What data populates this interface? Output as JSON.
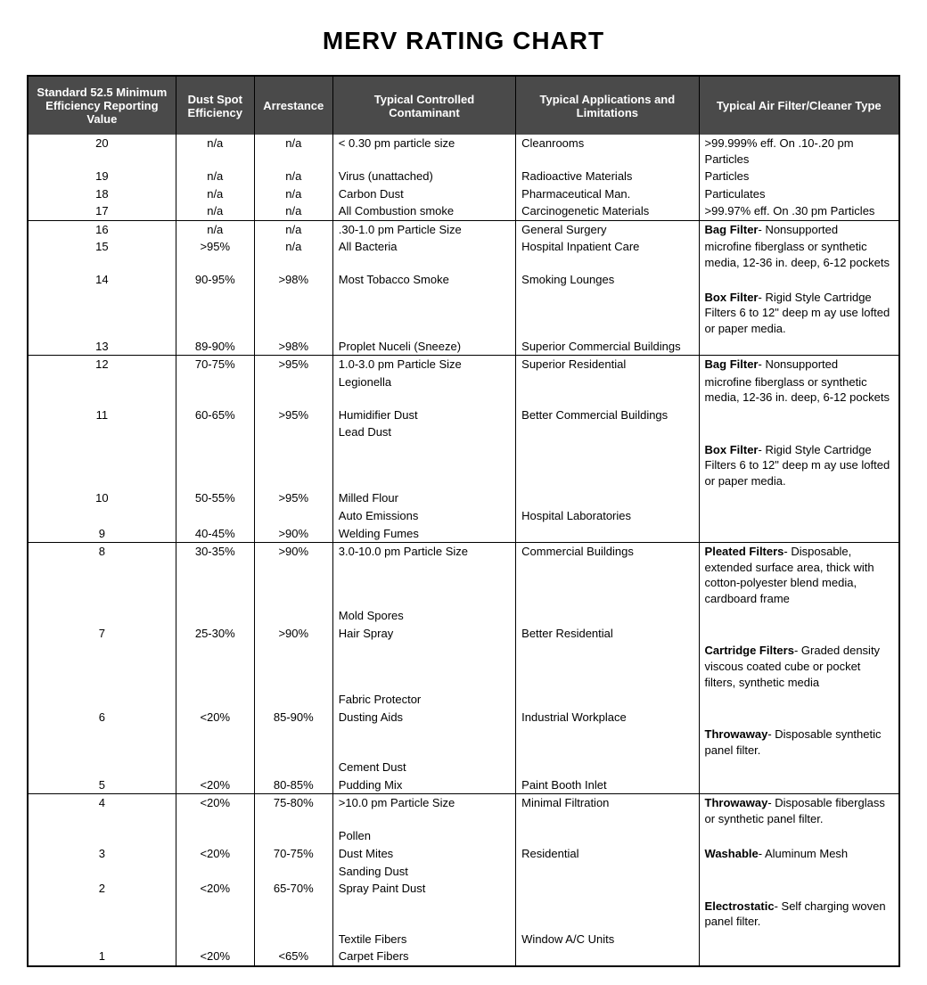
{
  "title": "MERV RATING CHART",
  "columns": [
    "Standard 52.5 Minimum Efficiency Reporting Value",
    "Dust Spot Efficiency",
    "Arrestance",
    "Typical Controlled Contaminant",
    "Typical Applications and Limitations",
    "Typical Air Filter/Cleaner Type"
  ],
  "styling": {
    "header_bg": "#4a4a4a",
    "header_color": "#ffffff",
    "border_color": "#000000",
    "body_bg": "#ffffff",
    "body_color": "#000000",
    "title_fontsize": 28,
    "header_fontsize": 13,
    "cell_fontsize": 13,
    "col_widths_pct": [
      17,
      9,
      9,
      21,
      21,
      23
    ]
  },
  "groups": [
    {
      "rows": [
        {
          "merv": "20",
          "dust": "n/a",
          "arr": "n/a",
          "contam": "< 0.30 pm particle size",
          "app": "Cleanrooms",
          "filter_plain": ">99.999% eff. On .10-.20 pm Particles"
        },
        {
          "merv": "19",
          "dust": "n/a",
          "arr": "n/a",
          "contam": "Virus (unattached)",
          "app": "Radioactive Materials",
          "filter_plain": "Particles"
        },
        {
          "merv": "18",
          "dust": "n/a",
          "arr": "n/a",
          "contam": "Carbon Dust",
          "app": "Pharmaceutical Man.",
          "filter_plain": "Particulates"
        },
        {
          "merv": "17",
          "dust": "n/a",
          "arr": "n/a",
          "contam": "All Combustion smoke",
          "app": "Carcinogenetic Materials",
          "filter_plain": ">99.97% eff. On .30 pm Particles"
        }
      ]
    },
    {
      "rows": [
        {
          "merv": "16",
          "dust": "n/a",
          "arr": "n/a",
          "contam": ".30-1.0 pm Particle Size",
          "app": "General Surgery",
          "filter_lead": "Bag Filter",
          "filter_rest": "- Nonsupported"
        },
        {
          "merv": "15",
          "dust": ">95%",
          "arr": "n/a",
          "contam": "All Bacteria",
          "app": "Hospital Inpatient Care",
          "filter_plain": "microfine fiberglass or synthetic media, 12-36 in. deep, 6-12 pockets"
        },
        {
          "merv": "14",
          "dust": "90-95%",
          "arr": ">98%",
          "contam": "Most Tobacco Smoke",
          "app": "Smoking Lounges",
          "filter_plain": ""
        },
        {
          "merv": "",
          "dust": "",
          "arr": "",
          "contam": "",
          "app": "",
          "filter_lead": "Box Filter",
          "filter_rest": "- Rigid Style Cartridge Filters 6 to 12\" deep m ay use lofted or paper media."
        },
        {
          "merv": "13",
          "dust": "89-90%",
          "arr": ">98%",
          "contam": "Proplet Nuceli (Sneeze)",
          "app": "Superior Commercial Buildings",
          "filter_plain": ""
        }
      ]
    },
    {
      "rows": [
        {
          "merv": "12",
          "dust": "70-75%",
          "arr": ">95%",
          "contam": "1.0-3.0 pm Particle Size",
          "app": "Superior Residential",
          "filter_lead": "Bag Filter",
          "filter_rest": "- Nonsupported"
        },
        {
          "merv": "",
          "dust": "",
          "arr": "",
          "contam": "Legionella",
          "app": "",
          "filter_plain": "microfine fiberglass or synthetic media, 12-36 in. deep, 6-12 pockets"
        },
        {
          "merv": "11",
          "dust": "60-65%",
          "arr": ">95%",
          "contam": "Humidifier Dust",
          "app": "Better Commercial Buildings",
          "filter_plain": ""
        },
        {
          "merv": "",
          "dust": "",
          "arr": "",
          "contam": "Lead Dust",
          "app": "",
          "filter_plain": ""
        },
        {
          "merv": "",
          "dust": "",
          "arr": "",
          "contam": "",
          "app": "",
          "filter_lead": "Box Filter",
          "filter_rest": "- Rigid Style Cartridge Filters 6 to 12\" deep m ay use lofted or paper media."
        },
        {
          "merv": "10",
          "dust": "50-55%",
          "arr": ">95%",
          "contam": "Milled Flour",
          "app": "",
          "filter_plain": ""
        },
        {
          "merv": "",
          "dust": "",
          "arr": "",
          "contam": "Auto Emissions",
          "app": "Hospital Laboratories",
          "filter_plain": ""
        },
        {
          "merv": "9",
          "dust": "40-45%",
          "arr": ">90%",
          "contam": "Welding Fumes",
          "app": "",
          "filter_plain": ""
        }
      ]
    },
    {
      "rows": [
        {
          "merv": "8",
          "dust": "30-35%",
          "arr": ">90%",
          "contam": "3.0-10.0 pm Particle Size",
          "app": "Commercial Buildings",
          "filter_lead": "Pleated Filters",
          "filter_rest": "- Disposable, extended surface area, thick with cotton-polyester blend media, cardboard frame"
        },
        {
          "merv": "",
          "dust": "",
          "arr": "",
          "contam": "Mold Spores",
          "app": "",
          "filter_plain": ""
        },
        {
          "merv": "7",
          "dust": "25-30%",
          "arr": ">90%",
          "contam": "Hair Spray",
          "app": "Better Residential",
          "filter_plain": ""
        },
        {
          "merv": "",
          "dust": "",
          "arr": "",
          "contam": "",
          "app": "",
          "filter_lead": "Cartridge Filters",
          "filter_rest": "- Graded density viscous coated cube or pocket filters, synthetic media"
        },
        {
          "merv": "",
          "dust": "",
          "arr": "",
          "contam": "Fabric Protector",
          "app": "",
          "filter_plain": ""
        },
        {
          "merv": "6",
          "dust": "<20%",
          "arr": "85-90%",
          "contam": "Dusting Aids",
          "app": "Industrial Workplace",
          "filter_plain": ""
        },
        {
          "merv": "",
          "dust": "",
          "arr": "",
          "contam": "",
          "app": "",
          "filter_lead": "Throwaway",
          "filter_rest": "- Disposable synthetic panel filter."
        },
        {
          "merv": "",
          "dust": "",
          "arr": "",
          "contam": "Cement Dust",
          "app": "",
          "filter_plain": ""
        },
        {
          "merv": "5",
          "dust": "<20%",
          "arr": "80-85%",
          "contam": "Pudding Mix",
          "app": "Paint Booth Inlet",
          "filter_plain": ""
        }
      ]
    },
    {
      "rows": [
        {
          "merv": "4",
          "dust": "<20%",
          "arr": "75-80%",
          "contam": ">10.0 pm Particle Size",
          "app": "Minimal Filtration",
          "filter_lead": "Throwaway",
          "filter_rest": "- Disposable fiberglass or synthetic panel filter."
        },
        {
          "merv": "",
          "dust": "",
          "arr": "",
          "contam": "Pollen",
          "app": "",
          "filter_plain": ""
        },
        {
          "merv": "3",
          "dust": "<20%",
          "arr": "70-75%",
          "contam": "Dust Mites",
          "app": "Residential",
          "filter_lead": "Washable",
          "filter_rest": "- Aluminum Mesh"
        },
        {
          "merv": "",
          "dust": "",
          "arr": "",
          "contam": "Sanding Dust",
          "app": "",
          "filter_plain": ""
        },
        {
          "merv": "2",
          "dust": "<20%",
          "arr": "65-70%",
          "contam": "Spray Paint Dust",
          "app": "",
          "filter_plain": ""
        },
        {
          "merv": "",
          "dust": "",
          "arr": "",
          "contam": "",
          "app": "",
          "filter_lead": "Electrostatic",
          "filter_rest": "- Self charging woven panel filter."
        },
        {
          "merv": "",
          "dust": "",
          "arr": "",
          "contam": "Textile Fibers",
          "app": "Window A/C Units",
          "filter_plain": ""
        },
        {
          "merv": "1",
          "dust": "<20%",
          "arr": "<65%",
          "contam": "Carpet Fibers",
          "app": "",
          "filter_plain": ""
        }
      ]
    }
  ]
}
